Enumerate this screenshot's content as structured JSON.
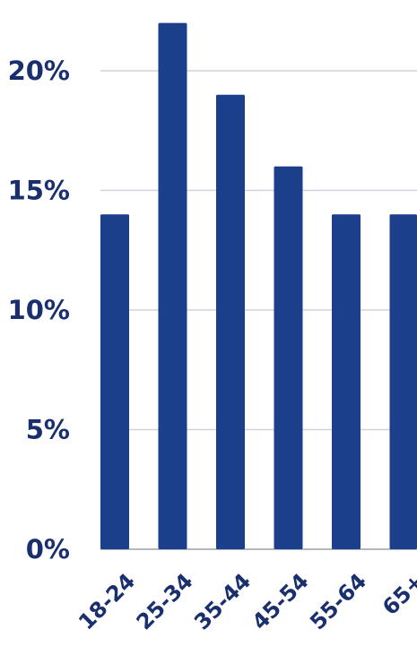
{
  "chart_data": {
    "type": "bar",
    "categories": [
      "18-24",
      "25-34",
      "35-44",
      "45-54",
      "55-64",
      "65+"
    ],
    "values": [
      14,
      22,
      19,
      16,
      14,
      14
    ],
    "ylim": [
      0,
      22
    ],
    "yticks": [
      0,
      5,
      10,
      15,
      20
    ],
    "ytick_labels": [
      "0%",
      "5%",
      "10%",
      "15%",
      "20%"
    ],
    "grid": true,
    "bar_color": "#1b3f8b",
    "text_color": "#1a2f6e"
  }
}
